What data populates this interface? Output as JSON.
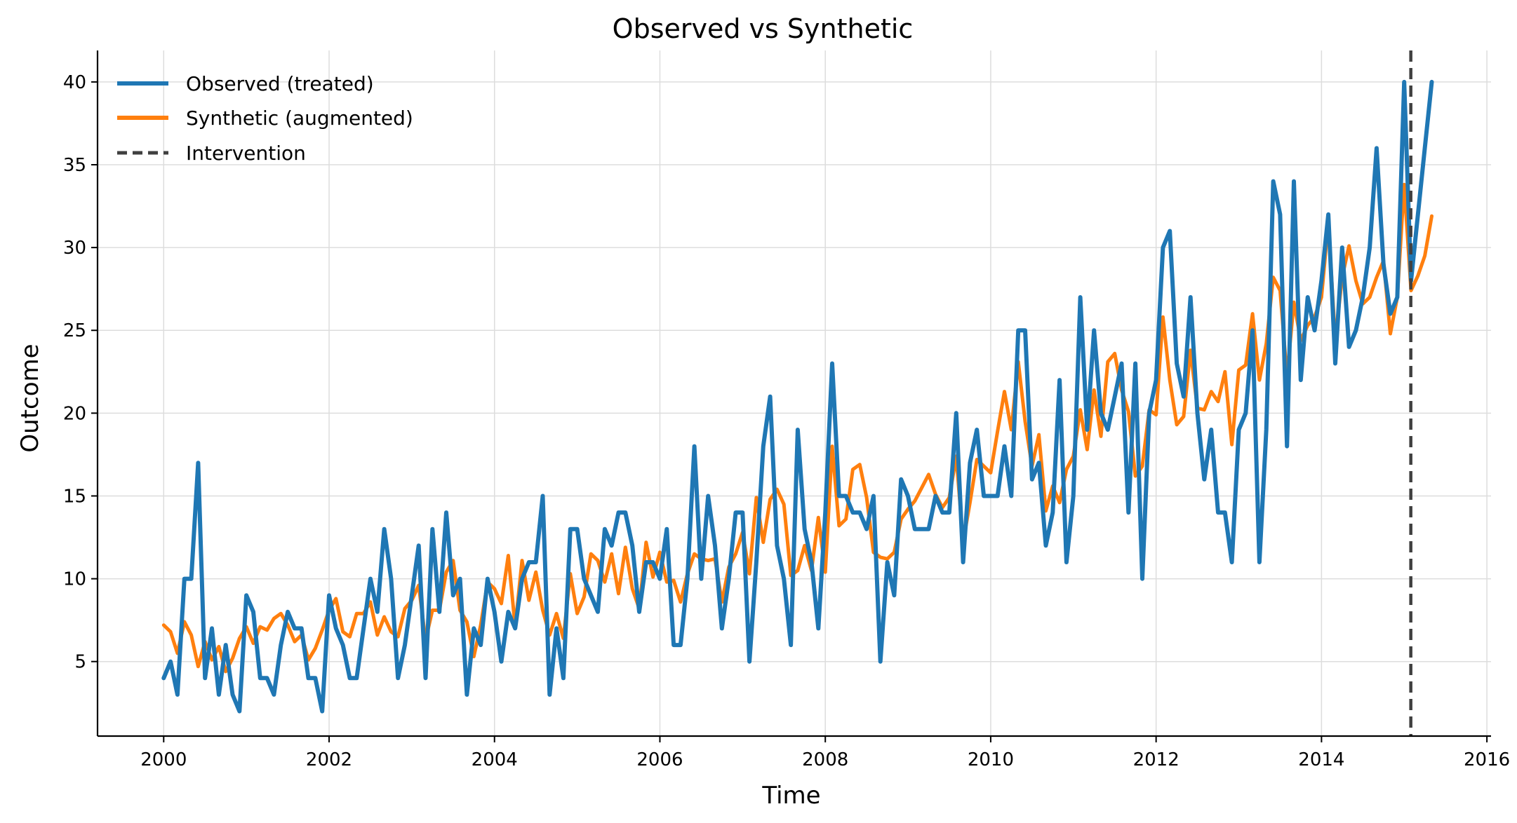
{
  "chart_data": {
    "type": "line",
    "title": "Observed vs Synthetic",
    "xlabel": "Time",
    "ylabel": "Outcome",
    "xlim": [
      1999.2,
      2016.05
    ],
    "ylim": [
      0.5,
      41.9
    ],
    "xticks": [
      2000,
      2002,
      2004,
      2006,
      2008,
      2010,
      2012,
      2014,
      2016
    ],
    "xtick_labels": [
      "2000",
      "2002",
      "2004",
      "2006",
      "2008",
      "2010",
      "2012",
      "2014",
      "2016"
    ],
    "yticks": [
      5,
      10,
      15,
      20,
      25,
      30,
      35,
      40
    ],
    "ytick_labels": [
      "5",
      "10",
      "15",
      "20",
      "25",
      "30",
      "35",
      "40"
    ],
    "grid": true,
    "legend_position": "upper-left",
    "x_start": 2000.0,
    "x_step": 0.08333,
    "series": [
      {
        "name": "Observed (treated)",
        "color": "#1f77b4",
        "style": "solid",
        "values": [
          4,
          5,
          3,
          10,
          10,
          17,
          4,
          7,
          3,
          6,
          3,
          2,
          9,
          8,
          4,
          4,
          3,
          6,
          8,
          7,
          7,
          4,
          4,
          2,
          9,
          7,
          6,
          4,
          4,
          7,
          10,
          8,
          13,
          10,
          4,
          6,
          9,
          12,
          4,
          13,
          8,
          14,
          9,
          10,
          3,
          7,
          6,
          10,
          8,
          5,
          8,
          7,
          10,
          11,
          11,
          15,
          3,
          7,
          4,
          13,
          13,
          10,
          9,
          8,
          13,
          12,
          14,
          14,
          12,
          8,
          11,
          11,
          10,
          13,
          6,
          6,
          10,
          18,
          10,
          15,
          12,
          7,
          10,
          14,
          14,
          5,
          11,
          18,
          21,
          12,
          10,
          6,
          19,
          13,
          11,
          7,
          14,
          23,
          15,
          15,
          14,
          14,
          13,
          15,
          5,
          11,
          9,
          16,
          15,
          13,
          13,
          13,
          15,
          14,
          14,
          20,
          11,
          17,
          19,
          15,
          15,
          15,
          18,
          15,
          25,
          25,
          16,
          17,
          12,
          14,
          22,
          11,
          15,
          27,
          19,
          25,
          20,
          19,
          21,
          23,
          14,
          23,
          10,
          20,
          22,
          30,
          31,
          23,
          21,
          27,
          20,
          16,
          19,
          14,
          14,
          11,
          19,
          20,
          25,
          11,
          19,
          34,
          32,
          18,
          34,
          22,
          27,
          25,
          28,
          32,
          23,
          30,
          24,
          25,
          27,
          30,
          36,
          29,
          26,
          27,
          40,
          28,
          32,
          36,
          40
        ]
      },
      {
        "name": "Synthetic (augmented)",
        "color": "#ff7f0e",
        "style": "solid",
        "values": [
          7.2,
          6.8,
          5.5,
          7.4,
          6.6,
          4.7,
          6.2,
          5.1,
          5.9,
          4.4,
          5.2,
          6.4,
          7.1,
          6.1,
          7.1,
          6.9,
          7.6,
          7.9,
          7.2,
          6.2,
          6.6,
          5.1,
          5.8,
          6.9,
          8.1,
          8.8,
          6.8,
          6.5,
          7.9,
          7.9,
          8.6,
          6.6,
          7.7,
          6.8,
          6.5,
          8.2,
          8.7,
          9.6,
          6.3,
          8.1,
          8.1,
          10.4,
          11.1,
          8.1,
          7.4,
          5.3,
          7.2,
          9.8,
          9.4,
          8.5,
          11.4,
          7.1,
          11.1,
          8.7,
          10.4,
          8.1,
          6.6,
          7.9,
          6.4,
          10.3,
          7.9,
          8.9,
          11.5,
          11.1,
          9.8,
          11.5,
          9.1,
          11.9,
          9.4,
          8.2,
          12.2,
          10.1,
          11.6,
          9.8,
          9.9,
          8.6,
          10.3,
          11.5,
          11.2,
          11.1,
          11.2,
          8.6,
          10.7,
          11.5,
          12.8,
          10.3,
          14.9,
          12.2,
          14.8,
          15.4,
          14.5,
          10.2,
          10.5,
          12.0,
          10.5,
          13.7,
          10.4,
          18.0,
          13.2,
          13.6,
          16.6,
          16.9,
          14.9,
          11.6,
          11.3,
          11.2,
          11.6,
          13.6,
          14.2,
          14.7,
          15.5,
          16.3,
          15.1,
          14.3,
          14.9,
          17.4,
          12.2,
          14.6,
          17.2,
          16.8,
          16.4,
          18.9,
          21.3,
          19.0,
          23.1,
          19.5,
          16.8,
          18.7,
          14.1,
          15.6,
          14.6,
          16.6,
          17.4,
          20.2,
          17.8,
          21.4,
          18.6,
          23.1,
          23.6,
          21.4,
          20.1,
          16.2,
          16.8,
          20.2,
          19.9,
          25.8,
          22.0,
          19.3,
          19.8,
          23.8,
          20.3,
          20.2,
          21.3,
          20.7,
          22.5,
          18.1,
          22.6,
          22.9,
          26.0,
          22.0,
          24.2,
          28.2,
          27.4,
          22.2,
          26.7,
          24.4,
          25.3,
          25.8,
          27.0,
          31.5,
          24.4,
          28.2,
          30.1,
          28.0,
          26.6,
          27.0,
          28.2,
          29.2,
          24.8,
          27.0,
          33.8,
          27.4,
          28.3,
          29.5,
          31.9
        ]
      }
    ],
    "annotations": [
      {
        "type": "vline",
        "label": "Intervention",
        "x": 2015.08,
        "color": "#404040",
        "style": "dashed"
      }
    ]
  }
}
